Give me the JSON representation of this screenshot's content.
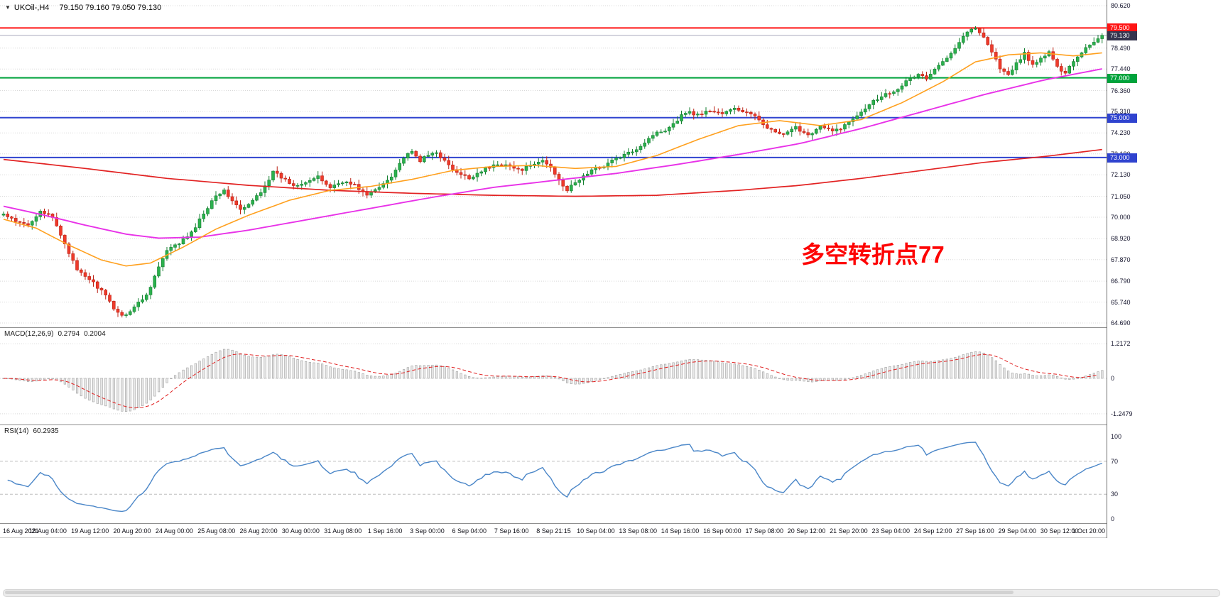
{
  "header": {
    "symbol_text": "UKOil-,H4",
    "ohlc_text": "79.150 79.160 79.050 79.130"
  },
  "annotation": {
    "text": "多空转折点77",
    "color": "#fd0404"
  },
  "price_axis": {
    "grid_labels": [
      {
        "text": "80.620",
        "price": 80.62
      },
      {
        "text": "78.490",
        "price": 78.49
      },
      {
        "text": "77.440",
        "price": 77.44
      },
      {
        "text": "76.360",
        "price": 76.36
      },
      {
        "text": "75.310",
        "price": 75.31
      },
      {
        "text": "74.230",
        "price": 74.23
      },
      {
        "text": "73.180",
        "price": 73.18
      },
      {
        "text": "72.130",
        "price": 72.13
      },
      {
        "text": "71.050",
        "price": 71.05
      },
      {
        "text": "70.000",
        "price": 70.0
      },
      {
        "text": "68.920",
        "price": 68.92
      },
      {
        "text": "67.870",
        "price": 67.87
      },
      {
        "text": "66.790",
        "price": 66.79
      },
      {
        "text": "65.740",
        "price": 65.74
      },
      {
        "text": "64.690",
        "price": 64.69
      }
    ],
    "badges": [
      {
        "text": "79.500",
        "price": 79.5,
        "bg": "#ff1414"
      },
      {
        "text": "79.130",
        "price": 79.13,
        "bg": "#34344e"
      },
      {
        "text": "77.000",
        "price": 77.0,
        "bg": "#00a33c"
      },
      {
        "text": "75.000",
        "price": 75.0,
        "bg": "#2f43cf"
      },
      {
        "text": "73.000",
        "price": 73.0,
        "bg": "#2f43cf"
      }
    ]
  },
  "macd_panel": {
    "title": "MACD(12,26,9)",
    "value_main": "0.2794",
    "value_signal": "0.2004",
    "scale": [
      {
        "text": "1.2172",
        "v": 1.2172
      },
      {
        "text": "0",
        "v": 0
      },
      {
        "text": "-1.2479",
        "v": -1.2479
      }
    ]
  },
  "rsi_panel": {
    "title": "RSI(14)",
    "value": "60.2935",
    "scale": [
      {
        "text": "100",
        "v": 100
      },
      {
        "text": "70",
        "v": 70
      },
      {
        "text": "30",
        "v": 30
      },
      {
        "text": "0",
        "v": 0
      }
    ]
  },
  "time_axis": {
    "labels": [
      "16 Aug 2021",
      "18 Aug 04:00",
      "19 Aug 12:00",
      "20 Aug 20:00",
      "24 Aug 00:00",
      "25 Aug 08:00",
      "26 Aug 20:00",
      "30 Aug 00:00",
      "31 Aug 08:00",
      "1 Sep 16:00",
      "3 Sep 00:00",
      "6 Sep 04:00",
      "7 Sep 16:00",
      "8 Sep 21:15",
      "10 Sep 04:00",
      "13 Sep 08:00",
      "14 Sep 16:00",
      "16 Sep 00:00",
      "17 Sep 08:00",
      "20 Sep 12:00",
      "21 Sep 20:00",
      "23 Sep 04:00",
      "24 Sep 12:00",
      "27 Sep 16:00",
      "29 Sep 04:00",
      "30 Sep 12:00",
      "1 Oct 20:00"
    ]
  },
  "chart_data": {
    "type": "candlestick",
    "symbol": "UKOil-",
    "timeframe": "H4",
    "title": "UKOil-,H4",
    "ohlc_current": {
      "open": 79.15,
      "high": 79.16,
      "low": 79.05,
      "close": 79.13
    },
    "ylim": [
      64.2,
      80.75
    ],
    "num_candles": 270,
    "close_anchors": [
      [
        0,
        70.15
      ],
      [
        3,
        69.75
      ],
      [
        6,
        69.6
      ],
      [
        9,
        70.35
      ],
      [
        12,
        69.95
      ],
      [
        15,
        68.7
      ],
      [
        18,
        67.3
      ],
      [
        21,
        66.9
      ],
      [
        24,
        66.3
      ],
      [
        27,
        65.45
      ],
      [
        29,
        65.05
      ],
      [
        31,
        65.3
      ],
      [
        33,
        65.7
      ],
      [
        35,
        66.1
      ],
      [
        38,
        67.5
      ],
      [
        40,
        68.3
      ],
      [
        43,
        68.7
      ],
      [
        46,
        69.2
      ],
      [
        49,
        70.2
      ],
      [
        52,
        71.15
      ],
      [
        54,
        71.3
      ],
      [
        56,
        70.85
      ],
      [
        58,
        70.35
      ],
      [
        60,
        70.6
      ],
      [
        63,
        71.3
      ],
      [
        66,
        72.25
      ],
      [
        68,
        72.0
      ],
      [
        71,
        71.6
      ],
      [
        74,
        71.8
      ],
      [
        77,
        72.0
      ],
      [
        80,
        71.5
      ],
      [
        83,
        71.8
      ],
      [
        86,
        71.6
      ],
      [
        89,
        71.1
      ],
      [
        92,
        71.5
      ],
      [
        95,
        72.1
      ],
      [
        98,
        73.0
      ],
      [
        100,
        73.25
      ],
      [
        102,
        72.85
      ],
      [
        104,
        73.1
      ],
      [
        106,
        73.3
      ],
      [
        108,
        72.8
      ],
      [
        111,
        72.2
      ],
      [
        114,
        71.95
      ],
      [
        117,
        72.35
      ],
      [
        120,
        72.6
      ],
      [
        123,
        72.7
      ],
      [
        126,
        72.35
      ],
      [
        129,
        72.55
      ],
      [
        132,
        72.85
      ],
      [
        134,
        72.5
      ],
      [
        136,
        71.9
      ],
      [
        138,
        71.35
      ],
      [
        141,
        71.9
      ],
      [
        144,
        72.35
      ],
      [
        147,
        72.6
      ],
      [
        150,
        72.95
      ],
      [
        153,
        73.2
      ],
      [
        156,
        73.6
      ],
      [
        159,
        74.15
      ],
      [
        162,
        74.4
      ],
      [
        165,
        74.9
      ],
      [
        167,
        75.3
      ],
      [
        170,
        75.15
      ],
      [
        173,
        75.35
      ],
      [
        176,
        75.2
      ],
      [
        179,
        75.45
      ],
      [
        182,
        75.25
      ],
      [
        185,
        74.9
      ],
      [
        188,
        74.35
      ],
      [
        191,
        74.1
      ],
      [
        194,
        74.5
      ],
      [
        197,
        74.15
      ],
      [
        200,
        74.55
      ],
      [
        203,
        74.3
      ],
      [
        206,
        74.6
      ],
      [
        209,
        75.15
      ],
      [
        212,
        75.7
      ],
      [
        215,
        76.1
      ],
      [
        218,
        76.35
      ],
      [
        221,
        76.8
      ],
      [
        224,
        77.2
      ],
      [
        226,
        76.95
      ],
      [
        229,
        77.6
      ],
      [
        232,
        78.3
      ],
      [
        234,
        78.8
      ],
      [
        236,
        79.35
      ],
      [
        238,
        79.45
      ],
      [
        240,
        79.1
      ],
      [
        242,
        78.3
      ],
      [
        244,
        77.5
      ],
      [
        246,
        77.1
      ],
      [
        248,
        77.7
      ],
      [
        250,
        78.25
      ],
      [
        252,
        77.6
      ],
      [
        254,
        77.95
      ],
      [
        256,
        78.3
      ],
      [
        258,
        77.5
      ],
      [
        260,
        77.3
      ],
      [
        262,
        77.85
      ],
      [
        264,
        78.3
      ],
      [
        266,
        78.7
      ],
      [
        268,
        78.95
      ],
      [
        269,
        79.13
      ]
    ],
    "ma_lines": [
      {
        "name": "ma-slow-red",
        "color": "#e22222",
        "width": 1.7,
        "anchors": [
          [
            0,
            72.9
          ],
          [
            20,
            72.45
          ],
          [
            40,
            71.95
          ],
          [
            60,
            71.6
          ],
          [
            80,
            71.35
          ],
          [
            100,
            71.2
          ],
          [
            120,
            71.1
          ],
          [
            140,
            71.05
          ],
          [
            160,
            71.1
          ],
          [
            180,
            71.35
          ],
          [
            195,
            71.6
          ],
          [
            210,
            71.95
          ],
          [
            225,
            72.35
          ],
          [
            240,
            72.75
          ],
          [
            255,
            73.05
          ],
          [
            269,
            73.4
          ]
        ]
      },
      {
        "name": "ma-mid-magenta",
        "color": "#e832e8",
        "width": 1.9,
        "anchors": [
          [
            0,
            70.55
          ],
          [
            10,
            70.1
          ],
          [
            20,
            69.6
          ],
          [
            30,
            69.15
          ],
          [
            38,
            68.95
          ],
          [
            48,
            69.0
          ],
          [
            60,
            69.35
          ],
          [
            75,
            69.9
          ],
          [
            90,
            70.45
          ],
          [
            105,
            71.0
          ],
          [
            120,
            71.5
          ],
          [
            135,
            71.85
          ],
          [
            150,
            72.2
          ],
          [
            165,
            72.65
          ],
          [
            180,
            73.15
          ],
          [
            195,
            73.7
          ],
          [
            210,
            74.45
          ],
          [
            225,
            75.3
          ],
          [
            240,
            76.15
          ],
          [
            255,
            76.9
          ],
          [
            269,
            77.45
          ]
        ]
      },
      {
        "name": "ma-fast-orange",
        "color": "#ffa01e",
        "width": 1.6,
        "anchors": [
          [
            0,
            69.9
          ],
          [
            8,
            69.45
          ],
          [
            16,
            68.6
          ],
          [
            24,
            67.85
          ],
          [
            30,
            67.55
          ],
          [
            36,
            67.7
          ],
          [
            44,
            68.5
          ],
          [
            52,
            69.4
          ],
          [
            60,
            70.1
          ],
          [
            70,
            70.85
          ],
          [
            80,
            71.35
          ],
          [
            90,
            71.55
          ],
          [
            100,
            71.9
          ],
          [
            110,
            72.35
          ],
          [
            120,
            72.55
          ],
          [
            130,
            72.6
          ],
          [
            140,
            72.45
          ],
          [
            150,
            72.55
          ],
          [
            160,
            73.1
          ],
          [
            170,
            73.9
          ],
          [
            180,
            74.6
          ],
          [
            190,
            74.85
          ],
          [
            200,
            74.6
          ],
          [
            210,
            74.9
          ],
          [
            220,
            75.75
          ],
          [
            230,
            76.8
          ],
          [
            238,
            77.8
          ],
          [
            246,
            78.15
          ],
          [
            254,
            78.25
          ],
          [
            262,
            78.1
          ],
          [
            269,
            78.25
          ]
        ]
      }
    ],
    "horizontal_lines": [
      {
        "name": "resistance-line",
        "price": 79.5,
        "color": "#ff1414",
        "width": 2
      },
      {
        "name": "support-line",
        "price": 77.0,
        "color": "#00a33c",
        "width": 2
      },
      {
        "name": "blue-level-75",
        "price": 75.0,
        "color": "#2f43cf",
        "width": 2
      },
      {
        "name": "blue-level-73",
        "price": 73.0,
        "color": "#2f43cf",
        "width": 2
      }
    ],
    "current_price_line": {
      "price": 79.13,
      "color": "#a9a9bd"
    },
    "indicators": {
      "macd": {
        "fast": 12,
        "slow": 26,
        "signal": 9,
        "value_main": 0.2794,
        "value_signal": 0.2004,
        "scale_max": 1.2172,
        "scale_min": -1.2479
      },
      "rsi": {
        "period": 14,
        "value": 60.2935,
        "levels": [
          70,
          30
        ]
      }
    },
    "colors": {
      "up_fill": "#2bb14d",
      "up_stroke": "#157f31",
      "down_fill": "#ee3a2b",
      "down_stroke": "#bb2114",
      "macd_hist_fill": "#e9e9e9",
      "macd_hist_stroke": "#9f9f9f",
      "macd_signal": "#e01f1f",
      "rsi_line": "#4a86c8",
      "grid": "#d9d9d9"
    }
  }
}
